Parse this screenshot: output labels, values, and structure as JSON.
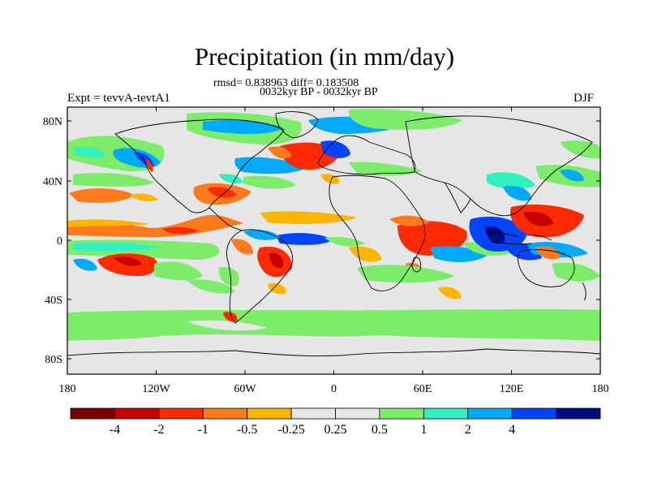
{
  "title": "Precipitation (in mm/day)",
  "stats": "rmsd= 0.838963 diff= 0.183508",
  "period": "0032kyr BP - 0032kyr BP",
  "experiment": "Expt = tevvA-tevtA1",
  "season": "DJF",
  "lat_ticks": [
    "80N",
    "40N",
    "0",
    "40S",
    "80S"
  ],
  "lon_ticks": [
    "180",
    "120W",
    "60W",
    "0",
    "60E",
    "120E",
    "180"
  ],
  "colorbar": {
    "colors": [
      "#7a0000",
      "#c40000",
      "#ff2a00",
      "#ff7a1a",
      "#ffb400",
      "#e6e6e6",
      "#e6e6e6",
      "#7dec6a",
      "#30f0c0",
      "#00aaff",
      "#0044ff",
      "#000c80"
    ],
    "labels": [
      "-4",
      "-2",
      "-1",
      "-0.5",
      "-0.25",
      "0.25",
      "0.5",
      "1",
      "2",
      "4"
    ]
  },
  "palette": {
    "background_field": "#e6e6e6",
    "strong_negative": "#c40000",
    "negative": "#ff2a00",
    "mild_negative": "#ff7a1a",
    "weak_negative": "#ffb400",
    "weak_positive": "#7dec6a",
    "positive": "#30f0c0",
    "moderate_positive": "#00aaff",
    "strong_positive": "#0044ff",
    "very_strong_positive": "#000c80"
  }
}
